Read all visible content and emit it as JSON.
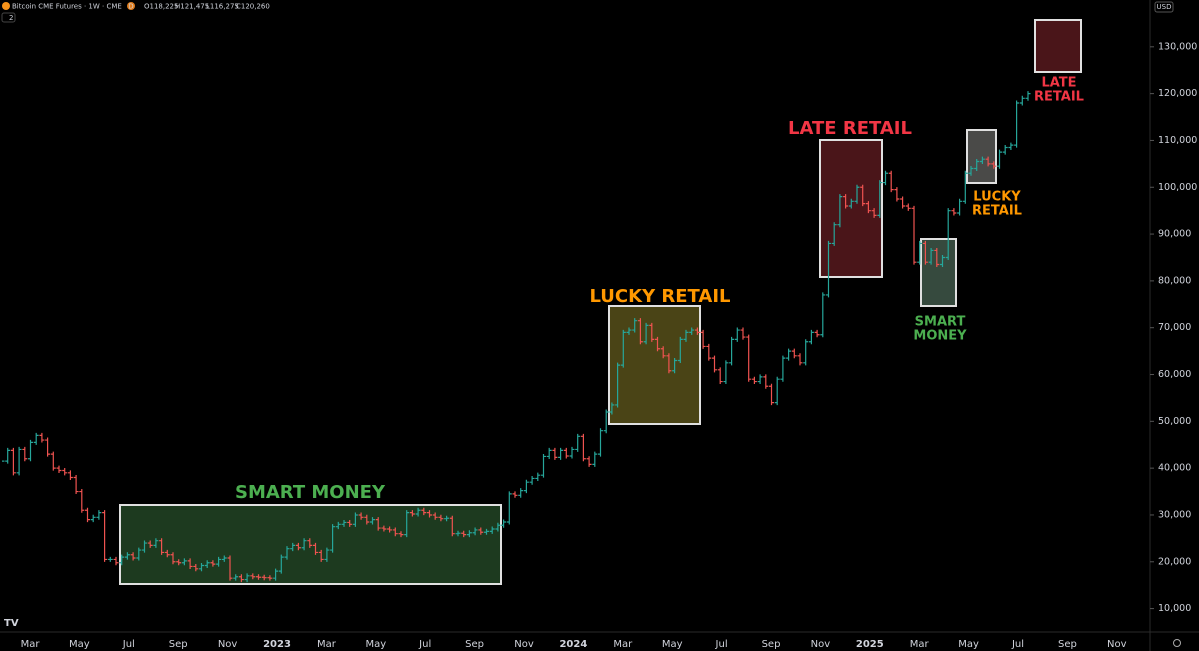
{
  "header": {
    "symbol": "Bitcoin CME Futures · 1W · CME",
    "badge": "D",
    "ohlc": [
      "O118,225",
      "H121,475",
      "L116,275",
      "C120,260"
    ],
    "indicator_count": "2"
  },
  "chart_data": {
    "type": "bar",
    "currency": "USD",
    "up_color": "#26a69a",
    "down_color": "#ef5350",
    "values": [
      41500,
      43800,
      39000,
      44000,
      42000,
      45500,
      47000,
      46000,
      43000,
      40000,
      39500,
      39000,
      38000,
      35000,
      31000,
      29000,
      29500,
      30500,
      20500,
      20500,
      19800,
      21000,
      21500,
      20800,
      22500,
      24000,
      23500,
      24500,
      22000,
      21500,
      20000,
      19800,
      20200,
      19000,
      18500,
      19200,
      19800,
      19500,
      20500,
      20800,
      16500,
      16800,
      16200,
      17000,
      16800,
      16700,
      16600,
      16500,
      18000,
      21000,
      22800,
      23500,
      23000,
      24500,
      23500,
      22000,
      20500,
      22500,
      27500,
      28000,
      28400,
      28000,
      30000,
      29500,
      28500,
      29000,
      27200,
      27000,
      26800,
      26000,
      25800,
      30500,
      30200,
      31000,
      30500,
      30000,
      29500,
      29200,
      29300,
      26000,
      26100,
      25800,
      26200,
      26800,
      26300,
      26500,
      27000,
      27800,
      28500,
      34500,
      34200,
      35200,
      37000,
      37800,
      38500,
      42500,
      43800,
      42300,
      43800,
      42600,
      44000,
      46800,
      42000,
      40800,
      43000,
      48000,
      52000,
      53500,
      62000,
      69000,
      69500,
      71500,
      67000,
      70500,
      67500,
      65500,
      64000,
      60800,
      63000,
      67500,
      69000,
      69500,
      69000,
      66000,
      63500,
      61000,
      58500,
      62500,
      67500,
      69500,
      68000,
      59000,
      58500,
      59500,
      57500,
      54000,
      59000,
      63500,
      65000,
      64000,
      62500,
      67000,
      69000,
      68500,
      77000,
      88000,
      92000,
      98000,
      96000,
      97000,
      100000,
      96500,
      95000,
      94000,
      101000,
      103000,
      99500,
      97500,
      96000,
      95500,
      84000,
      88000,
      84000,
      86500,
      83500,
      85000,
      95000,
      94500,
      97000,
      103000,
      104000,
      105500,
      106000,
      105000,
      104500,
      107500,
      108500,
      109000,
      118000,
      119000,
      120000
    ],
    "ylim": [
      5000,
      140000
    ],
    "yticks": [
      {
        "value": 130000,
        "label": "130,000"
      },
      {
        "value": 120000,
        "label": "120,000"
      },
      {
        "value": 110000,
        "label": "110,000"
      },
      {
        "value": 100000,
        "label": "100,000"
      },
      {
        "value": 90000,
        "label": "90,000"
      },
      {
        "value": 80000,
        "label": "80,000"
      },
      {
        "value": 70000,
        "label": "70,000"
      },
      {
        "value": 60000,
        "label": "60,000"
      },
      {
        "value": 50000,
        "label": "50,000"
      },
      {
        "value": 40000,
        "label": "40,000"
      },
      {
        "value": 30000,
        "label": "30,000"
      },
      {
        "value": 20000,
        "label": "20,000"
      },
      {
        "value": 10000,
        "label": "10,000"
      }
    ],
    "x_labels": [
      "Mar",
      "May",
      "Jul",
      "Sep",
      "Nov",
      "2023",
      "Mar",
      "May",
      "Jul",
      "Sep",
      "Nov",
      "2024",
      "Mar",
      "May",
      "Jul",
      "Sep",
      "Nov",
      "2025",
      "Mar",
      "May",
      "Jul",
      "Sep",
      "Nov"
    ],
    "annotations": [
      {
        "lines": [
          "SMART MONEY"
        ],
        "color": "#4caf50"
      },
      {
        "lines": [
          "LUCKY RETAIL"
        ],
        "color": "#ff9800"
      },
      {
        "lines": [
          "LATE RETAIL"
        ],
        "color": "#f23645"
      },
      {
        "lines": [
          "SMART",
          "MONEY"
        ],
        "color": "#4caf50"
      },
      {
        "lines": [
          "LUCKY",
          "RETAIL"
        ],
        "color": "#ff9800"
      },
      {
        "lines": [
          "LATE",
          "RETAIL"
        ],
        "color": "#f23645"
      }
    ]
  }
}
